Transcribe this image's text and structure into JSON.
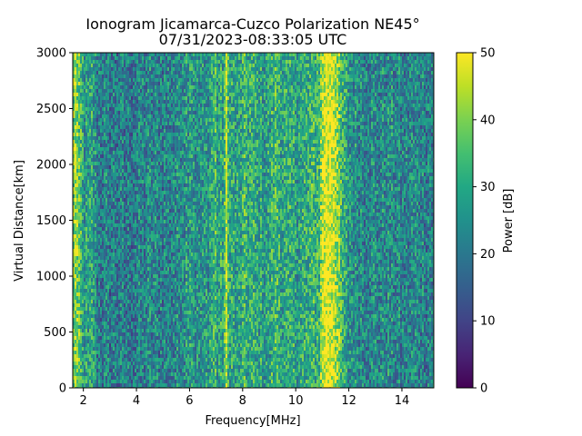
{
  "chart_data": {
    "type": "heatmap",
    "title": "Ionogram Jicamarca-Cuzco Polarization NE45°",
    "subtitle": "07/31/2023-08:33:05 UTC",
    "xlabel": "Frequency[MHz]",
    "ylabel": "Virtual Distance[km]",
    "colorbar_label": "Power [dB]",
    "colormap": "viridis",
    "xlim": [
      1.6,
      15.2
    ],
    "ylim": [
      0,
      3000
    ],
    "clim": [
      0,
      50
    ],
    "x_ticks": [
      2,
      4,
      6,
      8,
      10,
      12,
      14
    ],
    "y_ticks": [
      0,
      500,
      1000,
      1500,
      2000,
      2500,
      3000
    ],
    "colorbar_ticks": [
      0,
      10,
      20,
      30,
      40,
      50
    ],
    "grid": false,
    "frequency_profile_db": [
      {
        "f": 1.6,
        "db": 34
      },
      {
        "f": 1.7,
        "db": 44
      },
      {
        "f": 1.8,
        "db": 36
      },
      {
        "f": 2.0,
        "db": 28
      },
      {
        "f": 2.2,
        "db": 26
      },
      {
        "f": 2.35,
        "db": 30
      },
      {
        "f": 2.5,
        "db": 22
      },
      {
        "f": 3.0,
        "db": 21
      },
      {
        "f": 3.5,
        "db": 20
      },
      {
        "f": 4.0,
        "db": 21
      },
      {
        "f": 4.5,
        "db": 23
      },
      {
        "f": 5.0,
        "db": 22
      },
      {
        "f": 5.5,
        "db": 23
      },
      {
        "f": 5.9,
        "db": 27
      },
      {
        "f": 6.05,
        "db": 30
      },
      {
        "f": 6.2,
        "db": 25
      },
      {
        "f": 6.6,
        "db": 25
      },
      {
        "f": 7.0,
        "db": 33
      },
      {
        "f": 7.05,
        "db": 27
      },
      {
        "f": 7.3,
        "db": 30
      },
      {
        "f": 7.38,
        "db": 46
      },
      {
        "f": 7.45,
        "db": 32
      },
      {
        "f": 7.8,
        "db": 27
      },
      {
        "f": 8.1,
        "db": 32
      },
      {
        "f": 8.5,
        "db": 29
      },
      {
        "f": 9.0,
        "db": 28
      },
      {
        "f": 9.3,
        "db": 34
      },
      {
        "f": 9.5,
        "db": 29
      },
      {
        "f": 10.0,
        "db": 29
      },
      {
        "f": 10.5,
        "db": 30
      },
      {
        "f": 10.9,
        "db": 34
      },
      {
        "f": 11.05,
        "db": 49
      },
      {
        "f": 11.3,
        "db": 50
      },
      {
        "f": 11.5,
        "db": 46
      },
      {
        "f": 11.7,
        "db": 33
      },
      {
        "f": 12.0,
        "db": 26
      },
      {
        "f": 12.5,
        "db": 24
      },
      {
        "f": 13.0,
        "db": 23
      },
      {
        "f": 13.5,
        "db": 24
      },
      {
        "f": 14.0,
        "db": 22
      },
      {
        "f": 14.5,
        "db": 23
      },
      {
        "f": 15.2,
        "db": 22
      }
    ]
  }
}
